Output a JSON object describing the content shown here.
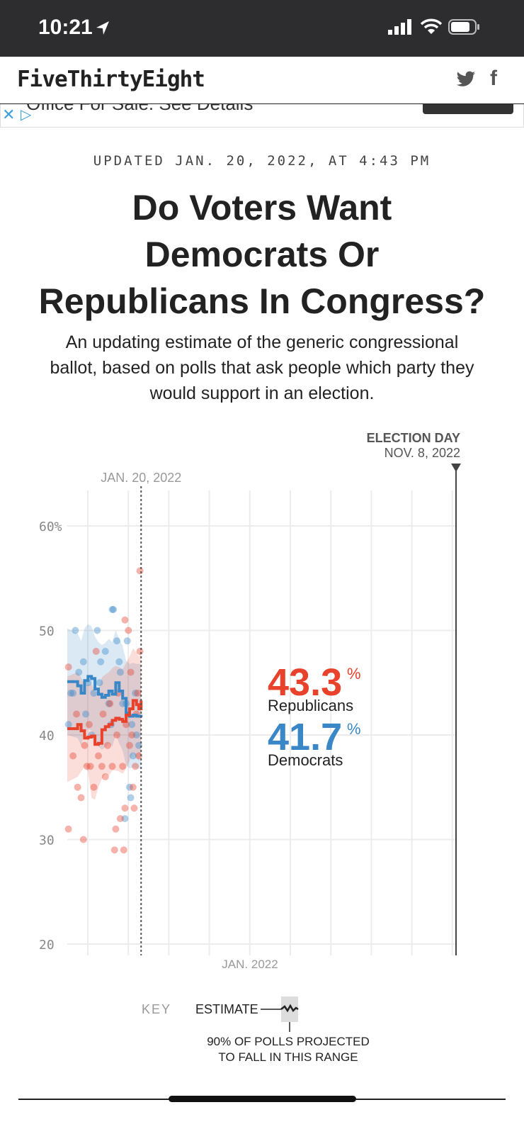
{
  "status_bar": {
    "time": "10:21"
  },
  "site": {
    "logo": "FiveThirtyEight"
  },
  "ad": {
    "text": "Office For Sale. See Details"
  },
  "article": {
    "updated": "UPDATED JAN. 20, 2022, AT 4:43 PM",
    "headline_line1": "Do Voters Want",
    "headline_line2": "Democrats Or",
    "headline_line3": "Republicans In Congress?",
    "dek_line1": "An updating estimate of the generic congressional",
    "dek_line2": "ballot, based on polls that ask people which party they",
    "dek_line3": "would support in an election."
  },
  "colors": {
    "republican": "#e8412c",
    "democrat": "#3a87c8"
  },
  "chart_data": {
    "type": "line",
    "ylim": [
      20,
      60
    ],
    "yticks": [
      "60%",
      "50",
      "40",
      "30",
      "20"
    ],
    "ytick_values": [
      60,
      50,
      40,
      30,
      20
    ],
    "x_label": "JAN. 2022",
    "today_label": "JAN. 20, 2022",
    "election_label": "ELECTION DAY",
    "election_date": "NOV. 8, 2022",
    "x_range_days": [
      -45,
      292
    ],
    "today_day": 19,
    "series": [
      {
        "name": "Republicans",
        "final": "43.3",
        "pct": "%",
        "days": [
          -45,
          -36,
          -33,
          -30,
          -27,
          -24,
          -21,
          -18,
          -15,
          -12,
          -9,
          -6,
          -3,
          0,
          3,
          6,
          9,
          12,
          15,
          17,
          19
        ],
        "values": [
          40.6,
          41.0,
          40.4,
          39.7,
          39.8,
          39.9,
          39.1,
          39.2,
          40.5,
          40.8,
          41.0,
          41.4,
          41.6,
          41.5,
          41.3,
          41.9,
          42.5,
          43.3,
          42.9,
          42.5,
          43.3
        ],
        "lower": [
          35.5,
          36,
          36.5,
          37,
          36.5,
          34,
          33.8,
          35,
          35.8,
          36.3,
          36.1,
          36.6,
          36.6,
          36.5,
          36.3,
          36.8,
          37.5,
          38.3,
          37.9,
          37.5,
          38.3
        ],
        "upper": [
          45.6,
          46,
          45.5,
          44.7,
          44.8,
          44.9,
          44.1,
          44.2,
          45.5,
          45.8,
          46,
          46.4,
          46.6,
          46.5,
          46.3,
          46.9,
          47.5,
          48.3,
          47.9,
          47.5,
          48.3
        ]
      },
      {
        "name": "Democrats",
        "final": "41.7",
        "pct": "%",
        "days": [
          -45,
          -36,
          -33,
          -30,
          -27,
          -24,
          -21,
          -18,
          -15,
          -12,
          -9,
          -6,
          -3,
          0,
          3,
          6,
          9,
          12,
          15,
          17,
          19
        ],
        "values": [
          45.1,
          44.7,
          44.0,
          45.2,
          45.6,
          45.4,
          44.4,
          43.9,
          43.6,
          43.8,
          44.2,
          43.9,
          45.0,
          44.2,
          43.5,
          42.1,
          41.8,
          41.9,
          41.8,
          41.8,
          41.7
        ],
        "lower": [
          40,
          39.7,
          39,
          40.2,
          40.6,
          40.4,
          39.4,
          38.9,
          38.6,
          38.8,
          39.2,
          38.9,
          40,
          39.2,
          38.5,
          37.1,
          36.8,
          36.9,
          36.8,
          36.8,
          36.7
        ],
        "upper": [
          50.2,
          49.7,
          49,
          50.2,
          50.6,
          50.4,
          49.4,
          48.9,
          48.6,
          48.8,
          49.2,
          48.9,
          50,
          49.2,
          48.5,
          47.1,
          46.8,
          46.9,
          46.8,
          46.8,
          46.7
        ]
      }
    ],
    "rep_polls": [
      [
        -44,
        31
      ],
      [
        -44,
        46.5
      ],
      [
        -40,
        38
      ],
      [
        -36,
        35
      ],
      [
        -33,
        34
      ],
      [
        -31,
        30
      ],
      [
        -30,
        39
      ],
      [
        -28,
        37
      ],
      [
        -25,
        37
      ],
      [
        -22,
        35
      ],
      [
        -20,
        48
      ],
      [
        -18,
        38
      ],
      [
        -15,
        37
      ],
      [
        -12,
        36
      ],
      [
        -10,
        39
      ],
      [
        -6,
        37
      ],
      [
        -4,
        29
      ],
      [
        -3,
        31
      ],
      [
        -1,
        44
      ],
      [
        1,
        32
      ],
      [
        3,
        37
      ],
      [
        4,
        29
      ],
      [
        5,
        33
      ],
      [
        5,
        51
      ],
      [
        8,
        50
      ],
      [
        9,
        39
      ],
      [
        10,
        46
      ],
      [
        12,
        35
      ],
      [
        13,
        33
      ],
      [
        14,
        37
      ],
      [
        16,
        44
      ],
      [
        17,
        38
      ],
      [
        18,
        55.7
      ],
      [
        18,
        48
      ],
      [
        -37,
        42
      ],
      [
        -26,
        41
      ],
      [
        -14,
        42
      ],
      [
        -8,
        43
      ],
      [
        -2,
        40
      ],
      [
        6,
        41
      ],
      [
        11,
        40
      ],
      [
        15,
        42
      ]
    ],
    "dem_polls": [
      [
        -44,
        41
      ],
      [
        -42,
        44
      ],
      [
        -38,
        50
      ],
      [
        -35,
        46
      ],
      [
        -31,
        47
      ],
      [
        -27,
        45
      ],
      [
        -22,
        44
      ],
      [
        -19,
        50
      ],
      [
        -16,
        47
      ],
      [
        -12,
        48
      ],
      [
        -9,
        43
      ],
      [
        -6,
        52
      ],
      [
        -5,
        52
      ],
      [
        -2,
        49
      ],
      [
        1,
        46
      ],
      [
        3,
        43
      ],
      [
        5,
        32
      ],
      [
        7,
        49
      ],
      [
        9,
        35
      ],
      [
        10,
        34
      ],
      [
        12,
        38
      ],
      [
        14,
        44
      ],
      [
        15,
        40
      ],
      [
        17,
        39
      ],
      [
        -40,
        44
      ],
      [
        -29,
        42
      ],
      [
        -24,
        40
      ],
      [
        -17,
        45
      ],
      [
        -7,
        41
      ],
      [
        0,
        47
      ],
      [
        6,
        43
      ],
      [
        11,
        41
      ]
    ]
  },
  "key": {
    "label": "KEY",
    "estimate": "ESTIMATE",
    "range_line1": "90% OF POLLS PROJECTED",
    "range_line2": "TO FALL IN THIS RANGE"
  }
}
